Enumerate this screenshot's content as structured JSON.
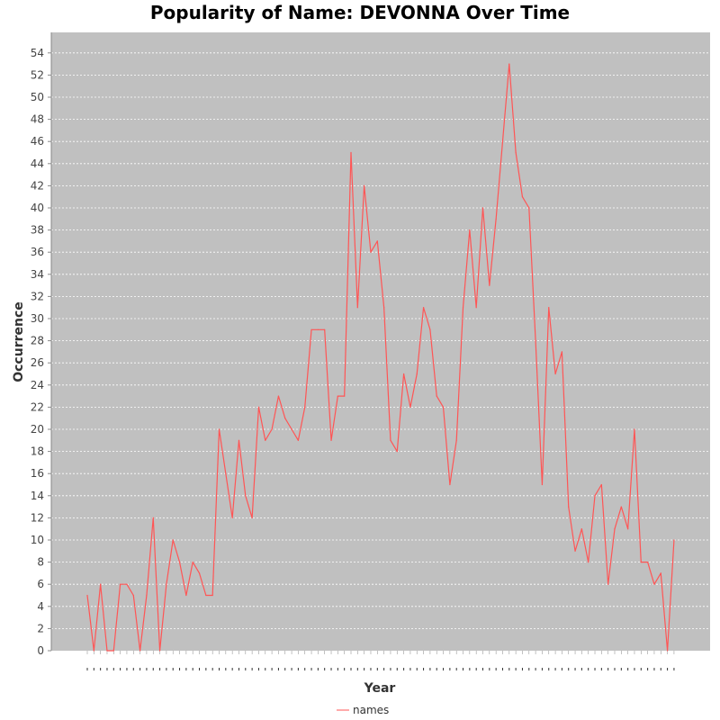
{
  "chart_data": {
    "type": "line",
    "title": "Popularity of Name: DEVONNA Over Time",
    "xlabel": "Year",
    "ylabel": "Occurrence",
    "ylim": [
      0,
      56
    ],
    "yticks": [
      0,
      2,
      4,
      6,
      8,
      10,
      12,
      14,
      16,
      18,
      20,
      22,
      24,
      26,
      28,
      30,
      32,
      34,
      36,
      38,
      40,
      42,
      44,
      46,
      48,
      50,
      52,
      54
    ],
    "grid": true,
    "legend_position": "bottom",
    "colors": {
      "plot_background": "#c0c0c0",
      "line": "#ff5555",
      "grid": "#ffffff"
    },
    "series": [
      {
        "name": "names",
        "values": [
          5,
          0,
          6,
          0,
          0,
          6,
          6,
          5,
          0,
          5,
          12,
          0,
          6,
          10,
          8,
          5,
          8,
          7,
          5,
          5,
          20,
          16,
          12,
          19,
          14,
          12,
          22,
          19,
          20,
          23,
          21,
          20,
          19,
          22,
          29,
          29,
          29,
          19,
          23,
          23,
          45,
          31,
          42,
          36,
          37,
          31,
          19,
          18,
          25,
          22,
          25,
          31,
          29,
          23,
          22,
          15,
          19,
          31,
          38,
          31,
          40,
          33,
          39,
          46,
          53,
          45,
          41,
          40,
          28,
          15,
          31,
          25,
          27,
          13,
          9,
          11,
          8,
          14,
          15,
          6,
          11,
          13,
          11,
          20,
          8,
          8,
          6,
          7,
          0,
          10
        ]
      }
    ]
  }
}
